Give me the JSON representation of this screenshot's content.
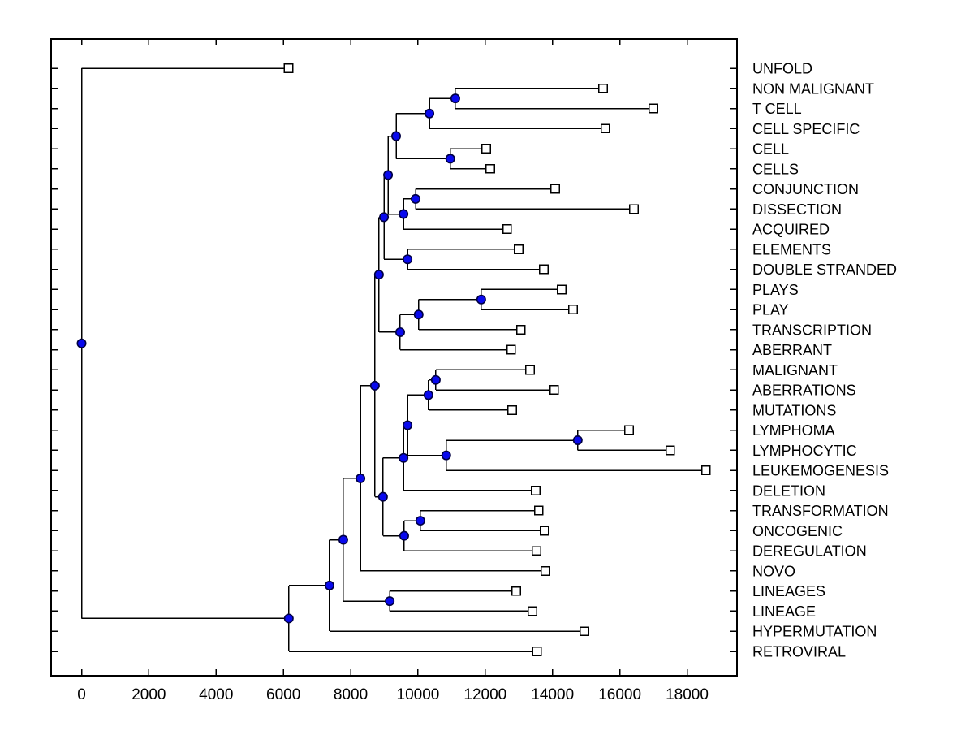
{
  "figure": {
    "background": "#ffffff",
    "kind": "phylogenetic tree plot"
  },
  "chart_data": {
    "type": "dendrogram",
    "subtype": "phylogenetic-tree",
    "orientation": "root-left-leaves-right",
    "title": "",
    "xlabel": "",
    "ylabel": "",
    "grid": false,
    "xlim": [
      -900,
      19500
    ],
    "x_axis": {
      "tick_values": [
        0,
        2000,
        4000,
        6000,
        8000,
        10000,
        12000,
        14000,
        16000,
        18000
      ],
      "tick_labels": [
        "0",
        "2000",
        "4000",
        "6000",
        "8000",
        "10000",
        "12000",
        "14000",
        "16000",
        "18000"
      ]
    },
    "style": {
      "line_color": "#000000",
      "branch_node_marker": "filled-circle",
      "branch_node_fill": "#0909ee",
      "branch_node_edge": "#000042",
      "leaf_node_marker": "open-square",
      "leaf_node_fill": "#ffffff",
      "leaf_node_edge": "#000000",
      "label_color": "#000000"
    },
    "leaf_labels_top_to_bottom": [
      "UNFOLD",
      "NON MALIGNANT",
      "T CELL",
      "CELL SPECIFIC",
      "CELL",
      "CELLS",
      "CONJUNCTION",
      "DISSECTION",
      "ACQUIRED",
      "ELEMENTS",
      "DOUBLE STRANDED",
      "PLAYS",
      "PLAY",
      "TRANSCRIPTION",
      "ABERRANT",
      "MALIGNANT",
      "ABERRATIONS",
      "MUTATIONS",
      "LYMPHOMA",
      "LYMPHOCYTIC",
      "LEUKEMOGENESIS",
      "DELETION",
      "TRANSFORMATION",
      "ONCOGENIC",
      "DEREGULATION",
      "NOVO",
      "LINEAGES",
      "LINEAGE",
      "HYPERMUTATION",
      "RETROVIRAL"
    ],
    "tree": {
      "distance": 0,
      "children": [
        {
          "label": "UNFOLD",
          "distance": 6150
        },
        {
          "distance": 6160,
          "children": [
            {
              "distance": 7370,
              "children": [
                {
                  "distance": 7780,
                  "children": [
                    {
                      "distance": 8290,
                      "children": [
                        {
                          "distance": 8720,
                          "children": [
                            {
                              "distance": 8840,
                              "children": [
                                {
                                  "distance": 8990,
                                  "children": [
                                    {
                                      "distance": 9110,
                                      "children": [
                                        {
                                          "distance": 9350,
                                          "children": [
                                            {
                                              "distance": 10340,
                                              "children": [
                                                {
                                                  "distance": 11110,
                                                  "children": [
                                                    {
                                                      "label": "NON MALIGNANT",
                                                      "distance": 15500
                                                    },
                                                    {
                                                      "label": "T CELL",
                                                      "distance": 17000
                                                    }
                                                  ]
                                                },
                                                {
                                                  "label": "CELL SPECIFIC",
                                                  "distance": 15570
                                                }
                                              ]
                                            },
                                            {
                                              "distance": 10960,
                                              "children": [
                                                {
                                                  "label": "CELL",
                                                  "distance": 12030
                                                },
                                                {
                                                  "label": "CELLS",
                                                  "distance": 12150
                                                }
                                              ]
                                            }
                                          ]
                                        },
                                        {
                                          "distance": 9570,
                                          "children": [
                                            {
                                              "distance": 9930,
                                              "children": [
                                                {
                                                  "label": "CONJUNCTION",
                                                  "distance": 14080
                                                },
                                                {
                                                  "label": "DISSECTION",
                                                  "distance": 16420
                                                }
                                              ]
                                            },
                                            {
                                              "label": "ACQUIRED",
                                              "distance": 12650
                                            }
                                          ]
                                        }
                                      ]
                                    },
                                    {
                                      "distance": 9690,
                                      "children": [
                                        {
                                          "label": "ELEMENTS",
                                          "distance": 12990
                                        },
                                        {
                                          "label": "DOUBLE STRANDED",
                                          "distance": 13740
                                        }
                                      ]
                                    }
                                  ]
                                },
                                {
                                  "distance": 9470,
                                  "children": [
                                    {
                                      "distance": 10020,
                                      "children": [
                                        {
                                          "distance": 11880,
                                          "children": [
                                            {
                                              "label": "PLAYS",
                                              "distance": 14270
                                            },
                                            {
                                              "label": "PLAY",
                                              "distance": 14610
                                            }
                                          ]
                                        },
                                        {
                                          "label": "TRANSCRIPTION",
                                          "distance": 13060
                                        }
                                      ]
                                    },
                                    {
                                      "label": "ABERRANT",
                                      "distance": 12770
                                    }
                                  ]
                                }
                              ]
                            },
                            {
                              "distance": 8960,
                              "children": [
                                {
                                  "distance": 9570,
                                  "children": [
                                    {
                                      "distance": 9690,
                                      "children": [
                                        {
                                          "distance": 10310,
                                          "children": [
                                            {
                                              "distance": 10530,
                                              "children": [
                                                {
                                                  "label": "MALIGNANT",
                                                  "distance": 13330
                                                },
                                                {
                                                  "label": "ABERRATIONS",
                                                  "distance": 14050
                                                }
                                              ]
                                            },
                                            {
                                              "label": "MUTATIONS",
                                              "distance": 12800
                                            }
                                          ]
                                        },
                                        {
                                          "distance": 10840,
                                          "children": [
                                            {
                                              "distance": 14750,
                                              "children": [
                                                {
                                                  "label": "LYMPHOMA",
                                                  "distance": 16270
                                                },
                                                {
                                                  "label": "LYMPHOCYTIC",
                                                  "distance": 17500
                                                }
                                              ]
                                            },
                                            {
                                              "label": "LEUKEMOGENESIS",
                                              "distance": 18560
                                            }
                                          ]
                                        }
                                      ]
                                    },
                                    {
                                      "label": "DELETION",
                                      "distance": 13500
                                    }
                                  ]
                                },
                                {
                                  "distance": 9590,
                                  "children": [
                                    {
                                      "distance": 10070,
                                      "children": [
                                        {
                                          "label": "TRANSFORMATION",
                                          "distance": 13590
                                        },
                                        {
                                          "label": "ONCOGENIC",
                                          "distance": 13760
                                        }
                                      ]
                                    },
                                    {
                                      "label": "DEREGULATION",
                                      "distance": 13520
                                    }
                                  ]
                                }
                              ]
                            }
                          ]
                        },
                        {
                          "label": "NOVO",
                          "distance": 13790
                        }
                      ]
                    },
                    {
                      "distance": 9160,
                      "children": [
                        {
                          "label": "LINEAGES",
                          "distance": 12920
                        },
                        {
                          "label": "LINEAGE",
                          "distance": 13400
                        }
                      ]
                    }
                  ]
                },
                {
                  "label": "HYPERMUTATION",
                  "distance": 14950
                }
              ]
            },
            {
              "label": "RETROVIRAL",
              "distance": 13540
            }
          ]
        }
      ]
    }
  }
}
